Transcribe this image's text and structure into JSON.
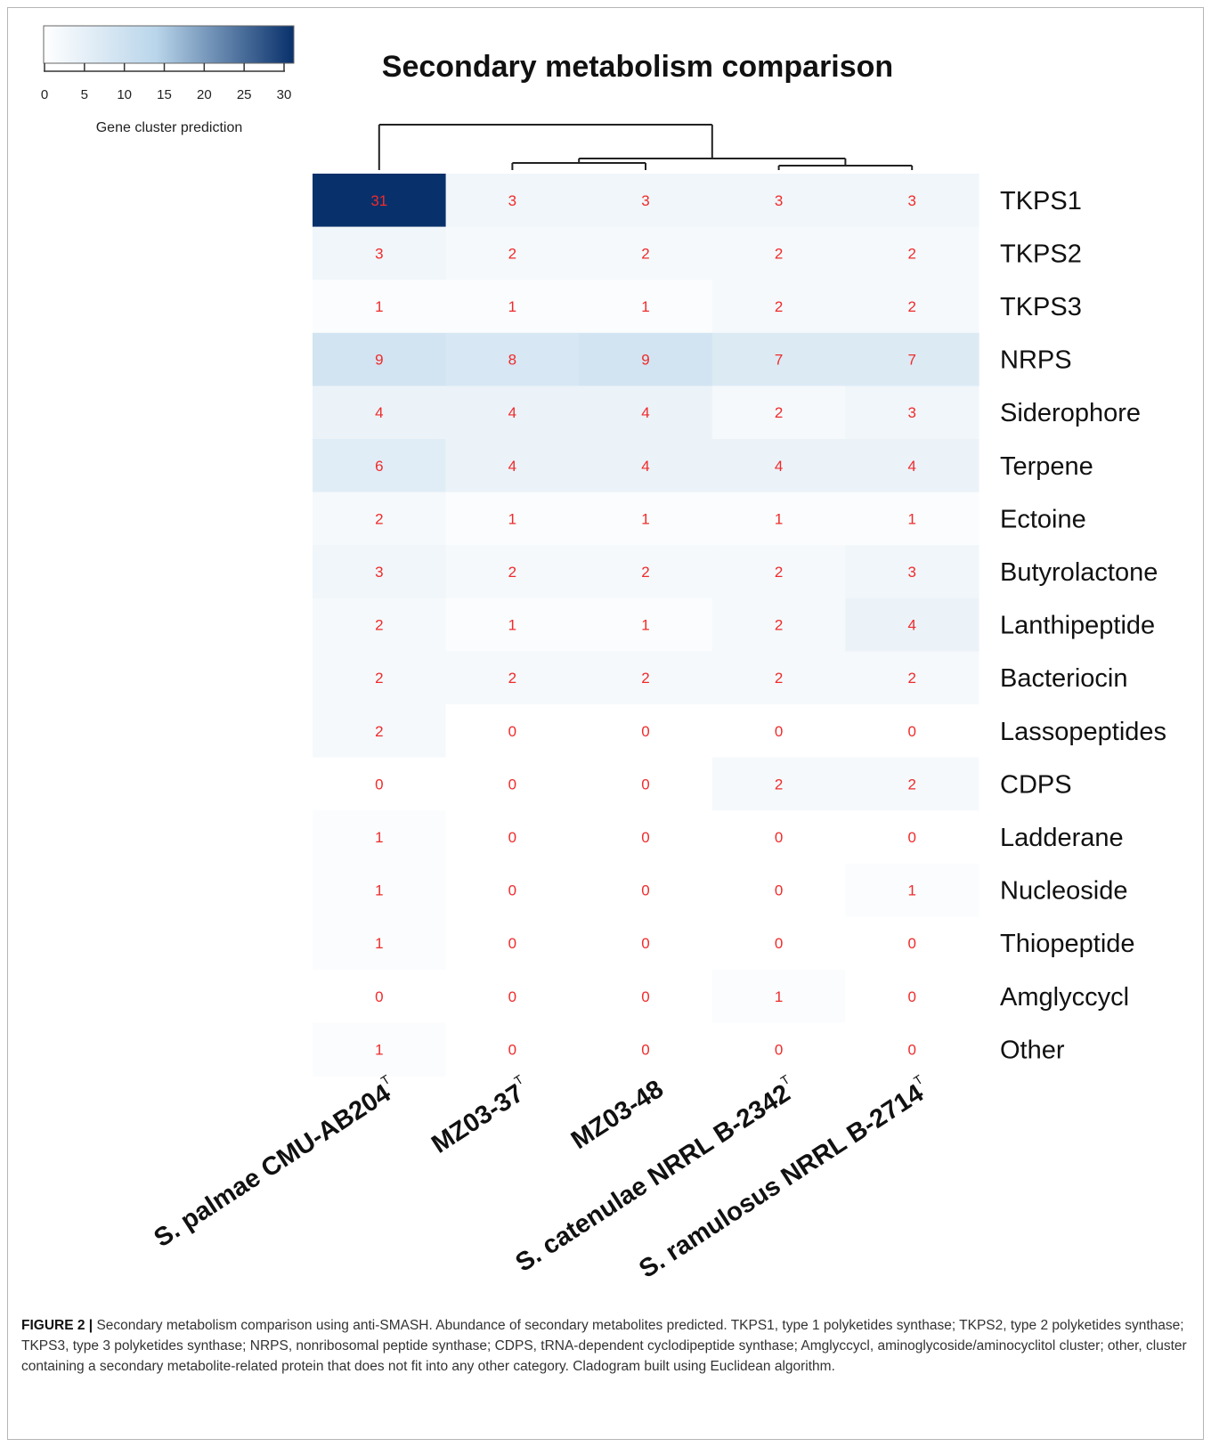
{
  "chart_data": {
    "type": "heatmap",
    "title": "Secondary metabolism comparison",
    "legend": {
      "title": "Gene cluster prediction",
      "ticks": [
        "0",
        "5",
        "10",
        "15",
        "20",
        "25",
        "30"
      ],
      "range": [
        0,
        31
      ],
      "colors": [
        "#ffffff",
        "#b9d5ea",
        "#08306b"
      ],
      "placement": "top-left"
    },
    "columns": [
      {
        "name": "S. palmae CMU-AB204",
        "sup": "T"
      },
      {
        "name": "MZ03-37",
        "sup": "T"
      },
      {
        "name": "MZ03-48",
        "sup": ""
      },
      {
        "name": "S. catenulae NRRL B-2342",
        "sup": "T"
      },
      {
        "name": "S. ramulosus NRRL B-2714",
        "sup": "T"
      }
    ],
    "rows": [
      "TKPS1",
      "TKPS2",
      "TKPS3",
      "NRPS",
      "Siderophore",
      "Terpene",
      "Ectoine",
      "Butyrolactone",
      "Lanthipeptide",
      "Bacteriocin",
      "Lassopeptides",
      "CDPS",
      "Ladderane",
      "Nucleoside",
      "Thiopeptide",
      "Amglyccycl",
      "Other"
    ],
    "values": [
      [
        31,
        3,
        3,
        3,
        3
      ],
      [
        3,
        2,
        2,
        2,
        2
      ],
      [
        1,
        1,
        1,
        2,
        2
      ],
      [
        9,
        8,
        9,
        7,
        7
      ],
      [
        4,
        4,
        4,
        2,
        3
      ],
      [
        6,
        4,
        4,
        4,
        4
      ],
      [
        2,
        1,
        1,
        1,
        1
      ],
      [
        3,
        2,
        2,
        2,
        3
      ],
      [
        2,
        1,
        1,
        2,
        4
      ],
      [
        2,
        2,
        2,
        2,
        2
      ],
      [
        2,
        0,
        0,
        0,
        0
      ],
      [
        0,
        0,
        0,
        2,
        2
      ],
      [
        1,
        0,
        0,
        0,
        0
      ],
      [
        1,
        0,
        0,
        0,
        1
      ],
      [
        1,
        0,
        0,
        0,
        0
      ],
      [
        0,
        0,
        0,
        1,
        0
      ],
      [
        1,
        0,
        0,
        0,
        0
      ]
    ],
    "value_label_color": "#ef2b2b",
    "dendrogram": "columns"
  },
  "caption": {
    "label": "FIGURE 2 |",
    "text": "Secondary metabolism comparison using anti-SMASH. Abundance of secondary metabolites predicted. TKPS1, type 1 polyketides synthase; TKPS2, type 2 polyketides synthase; TKPS3, type 3 polyketides synthase; NRPS, nonribosomal peptide synthase; CDPS, tRNA-dependent cyclodipeptide synthase; Amglyccycl, aminoglycoside/aminocyclitol cluster; other, cluster containing a secondary metabolite-related protein that does not fit into any other category. Cladogram built using Euclidean algorithm."
  }
}
